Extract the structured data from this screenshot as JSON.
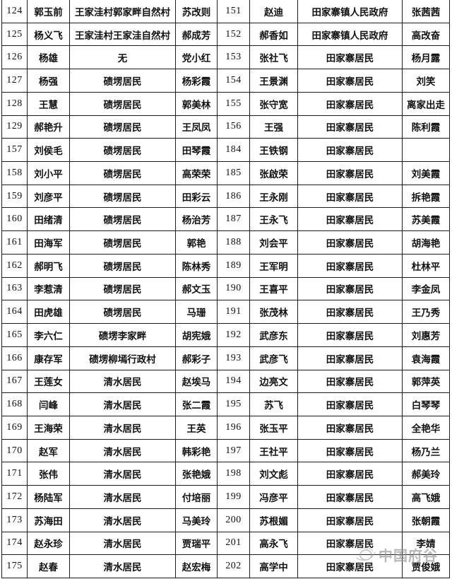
{
  "page": {
    "background_color": "#ffffff",
    "border_color": "#1c1c1c"
  },
  "table": {
    "description_visible_headers": "",
    "rows": [
      [
        "124",
        "郭玉前",
        "王家洼村郭家畔自然村",
        "苏改则",
        "151",
        "赵迪",
        "田家寨镇人民政府",
        "张茜茜"
      ],
      [
        "125",
        "杨义飞",
        "王家洼村王家洼自然村",
        "郝成芳",
        "152",
        "郝香如",
        "田家寨镇人民政府",
        "高改奋"
      ],
      [
        "126",
        "杨雄",
        "无",
        "党小红",
        "153",
        "张社飞",
        "田家寨居民",
        "杨月露"
      ],
      [
        "127",
        "杨强",
        "碛塄居民",
        "杨彩霞",
        "154",
        "王景渊",
        "田家寨居民",
        "刘笑"
      ],
      [
        "128",
        "王慧",
        "碛塄居民",
        "郭美林",
        "155",
        "张守宽",
        "田家寨居民",
        "离家出走"
      ],
      [
        "129",
        "郝艳升",
        "碛塄居民",
        "王凤凤",
        "156",
        "王强",
        "田家寨居民",
        "陈利霞"
      ],
      [
        "157",
        "刘侯毛",
        "碛塄居民",
        "田琴霞",
        "184",
        "王铁钢",
        "田家寨居民",
        ""
      ],
      [
        "158",
        "刘小平",
        "碛塄居民",
        "高荣荣",
        "185",
        "张啟荣",
        "田家寨居民",
        "刘美霞"
      ],
      [
        "159",
        "刘彦平",
        "碛塄居民",
        "田彩云",
        "186",
        "王永刚",
        "田家寨居民",
        "拆艳霞"
      ],
      [
        "160",
        "田绪清",
        "碛塄居民",
        "杨治芳",
        "187",
        "王永飞",
        "田家寨居民",
        "苏美霞"
      ],
      [
        "161",
        "田海军",
        "碛塄居民",
        "郭艳",
        "188",
        "刘会平",
        "田家寨居民",
        "胡海艳"
      ],
      [
        "162",
        "郝明飞",
        "碛塄居民",
        "陈林秀",
        "189",
        "王军明",
        "田家寨居民",
        "杜林平"
      ],
      [
        "163",
        "李惹清",
        "碛塄居民",
        "郝文玉",
        "190",
        "王喜平",
        "田家寨居民",
        "李金凤"
      ],
      [
        "164",
        "田虎雄",
        "碛塄居民",
        "马珊",
        "191",
        "张茂林",
        "田家寨居民",
        "王乃秀"
      ],
      [
        "165",
        "李六仁",
        "碛塄李家畔",
        "胡宪娥",
        "192",
        "武彦东",
        "田家寨居民",
        "刘惠芳"
      ],
      [
        "166",
        "康存军",
        "碛塄柳墕行政村",
        "郝彩子",
        "193",
        "武彦飞",
        "田家寨居民",
        "袁海霞"
      ],
      [
        "167",
        "王莲女",
        "清水居民",
        "赵埃马",
        "194",
        "边亮文",
        "田家寨居民",
        "郭萍英"
      ],
      [
        "168",
        "闫峰",
        "清水居民",
        "张二霞",
        "195",
        "苏飞",
        "田家寨居民",
        "白琴琴"
      ],
      [
        "169",
        "王海荣",
        "清水居民",
        "王英",
        "196",
        "张玉平",
        "田家寨居民",
        "全艳华"
      ],
      [
        "170",
        "赵军",
        "清水居民",
        "韩彩艳",
        "197",
        "王社平",
        "田家寨居民",
        "杨乃兰"
      ],
      [
        "171",
        "张伟",
        "清水居民",
        "张艳娥",
        "198",
        "刘文彪",
        "田家寨居民",
        "郝美玲"
      ],
      [
        "172",
        "杨陆军",
        "清水居民",
        "付培丽",
        "199",
        "冯彦平",
        "田家寨居民",
        "高飞娥"
      ],
      [
        "173",
        "苏海田",
        "清水居民",
        "马美玲",
        "200",
        "苏根媚",
        "田家寨居民",
        "张朝霞"
      ],
      [
        "174",
        "赵永珍",
        "清水居民",
        "贾瑞平",
        "201",
        "高永飞",
        "田家寨居民",
        "李婧"
      ],
      [
        "175",
        "赵春",
        "清水居民",
        "赵宏梅",
        "202",
        "高学中",
        "田家寨居民",
        "贾俊娥"
      ]
    ],
    "cell_roles": [
      "row-number-left",
      "person-name-left",
      "affiliation-left",
      "spouse-name-left",
      "row-number-right",
      "person-name-right",
      "affiliation-right",
      "spouse-name-right"
    ]
  },
  "watermark": {
    "text": "中国府谷",
    "color": "#8d8d8d",
    "icon": "swirl-globe-icon"
  }
}
